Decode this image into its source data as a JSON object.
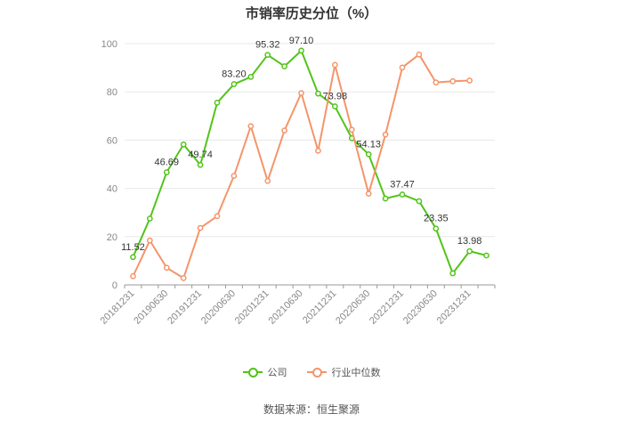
{
  "source": "数据来源：恒生聚源",
  "chart_data": {
    "type": "line",
    "title": "市销率历史分位（%）",
    "xlabel": "",
    "ylabel": "",
    "ylim": [
      0,
      100
    ],
    "yticks": [
      0,
      20,
      40,
      60,
      80,
      100
    ],
    "grid": true,
    "legend": "bottom",
    "x": [
      "20181231",
      "20190331",
      "20190630",
      "20190930",
      "20191231",
      "20200331",
      "20200630",
      "20200930",
      "20201231",
      "20210331",
      "20210630",
      "20210930",
      "20211231",
      "20220331",
      "20220630",
      "20220930",
      "20221231",
      "20230331",
      "20230630",
      "20230930",
      "20231231",
      "20240331"
    ],
    "x_tick_labels": [
      "20181231",
      "20190630",
      "20191231",
      "20200630",
      "20201231",
      "20210630",
      "20211231",
      "20220630",
      "20221231",
      "20230630",
      "20231231"
    ],
    "series": [
      {
        "name": "公司",
        "color": "#52c41a",
        "values": [
          11.52,
          27.5,
          46.69,
          58.2,
          49.74,
          75.5,
          83.2,
          86.2,
          95.32,
          90.6,
          97.1,
          79.3,
          73.98,
          60.8,
          54.13,
          35.8,
          37.47,
          34.7,
          23.35,
          4.8,
          13.98,
          12.2
        ],
        "labels": {
          "0": "11.52",
          "2": "46.69",
          "4": "49.74",
          "6": "83.20",
          "8": "95.32",
          "10": "97.10",
          "12": "73.98",
          "14": "54.13",
          "16": "37.47",
          "18": "23.35",
          "20": "13.98"
        }
      },
      {
        "name": "行业中位数",
        "color": "#f4956a",
        "values": [
          3.6,
          18.4,
          7.1,
          2.8,
          23.6,
          28.5,
          45.2,
          65.8,
          43.1,
          64.0,
          79.5,
          55.6,
          91.2,
          64.3,
          37.8,
          62.3,
          90.1,
          95.5,
          83.9,
          84.4,
          84.7,
          null
        ]
      }
    ]
  }
}
